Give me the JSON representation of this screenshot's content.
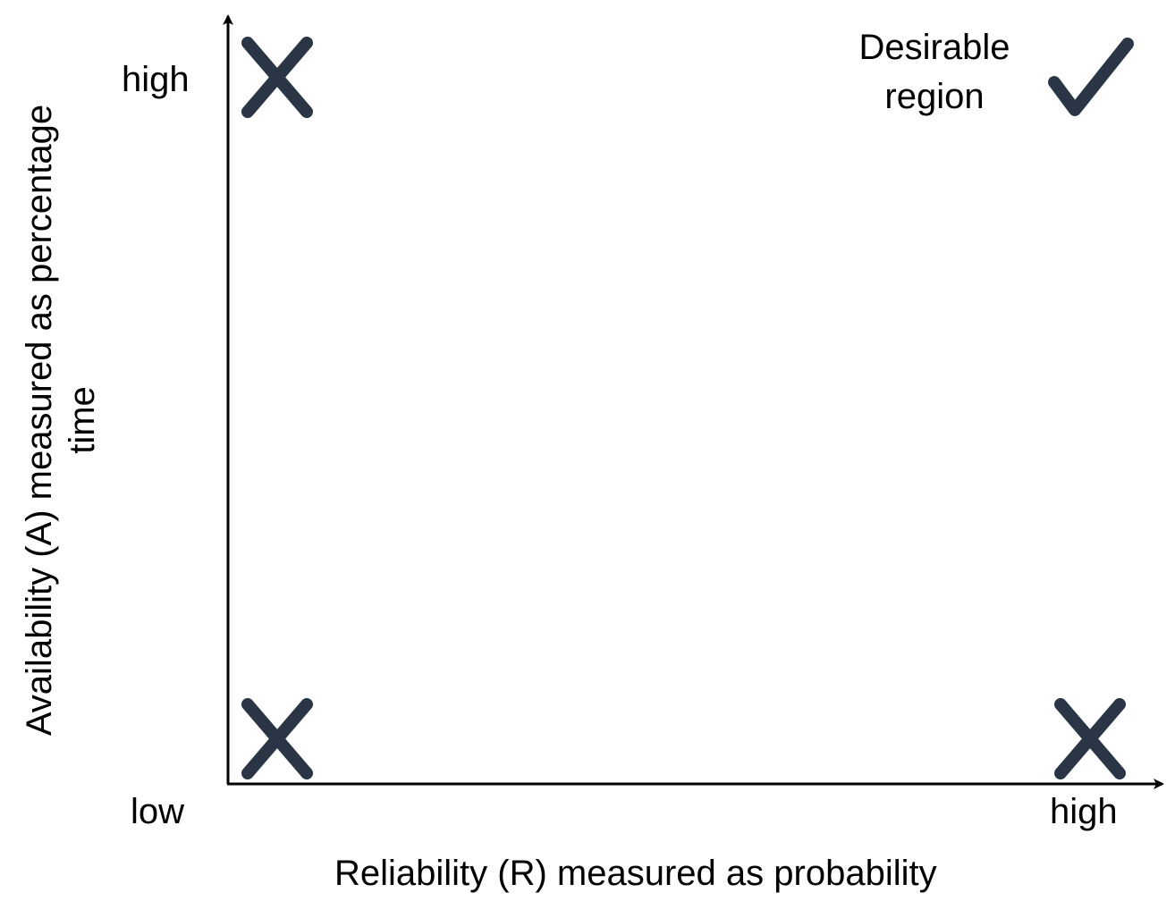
{
  "x_axis": {
    "title": "Reliability (R) measured as probability",
    "low_label": "low",
    "high_label": "high"
  },
  "y_axis": {
    "title_line1": "Availability (A) measured as percentage",
    "title_line2": "time",
    "high_label": "high"
  },
  "region_label": {
    "line1": "Desirable",
    "line2": "region"
  },
  "markers": [
    {
      "name": "low-reliability-high-availability",
      "symbol": "cross-icon"
    },
    {
      "name": "low-reliability-low-availability",
      "symbol": "cross-icon"
    },
    {
      "name": "high-reliability-low-availability",
      "symbol": "cross-icon"
    },
    {
      "name": "high-reliability-high-availability",
      "symbol": "check-icon"
    }
  ],
  "colors": {
    "marker": "#2a3646",
    "axis": "#000000",
    "text": "#000000"
  }
}
